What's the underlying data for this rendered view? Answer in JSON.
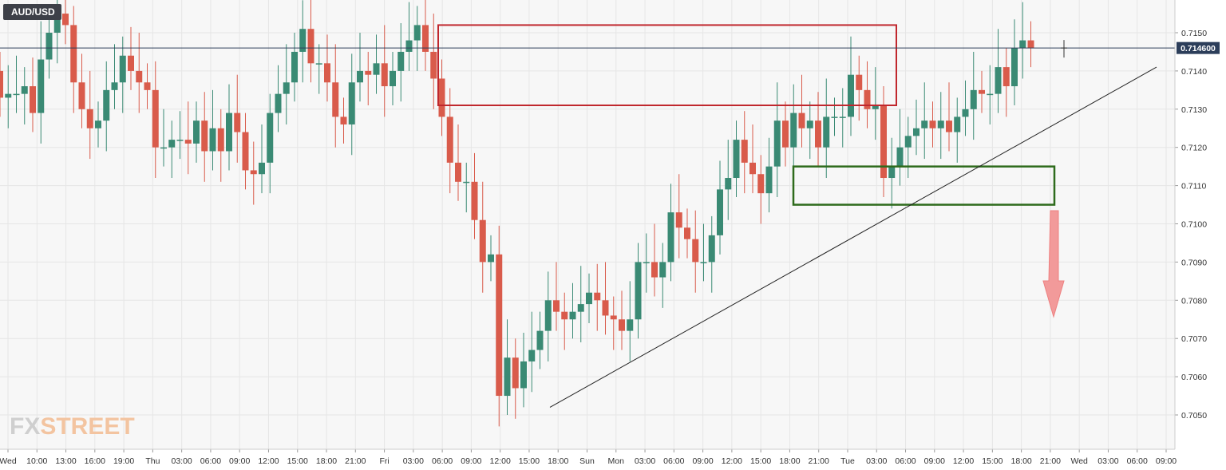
{
  "symbol": "AUD/USD",
  "watermark": {
    "part1": "FX",
    "part2": "STREET"
  },
  "current_price_label": "0.714600",
  "colors": {
    "bull": "#3a8a74",
    "bear": "#d95b4b",
    "grid": "#e6e6e6",
    "background": "#f7f7f7",
    "resistance_box": "#c0272d",
    "support_box": "#2e6b1c",
    "trendline": "#222222",
    "arrow": "#f29a9a",
    "price_line": "#2c3e5a"
  },
  "chart_data": {
    "type": "candlestick",
    "title": "",
    "symbol": "AUD/USD",
    "timeframe": "hourly",
    "xlabel": "",
    "ylabel": "",
    "ylim": [
      0.7045,
      0.7158
    ],
    "yticks": [
      "0.7050",
      "0.7060",
      "0.7070",
      "0.7080",
      "0.7090",
      "0.7100",
      "0.7110",
      "0.7120",
      "0.7130",
      "0.7140",
      "0.7150"
    ],
    "xticks": [
      "Wed",
      "10:00",
      "13:00",
      "16:00",
      "19:00",
      "Thu",
      "03:00",
      "06:00",
      "09:00",
      "12:00",
      "15:00",
      "18:00",
      "21:00",
      "Fri",
      "03:00",
      "06:00",
      "09:00",
      "12:00",
      "15:00",
      "18:00",
      "Sun",
      "Mon",
      "03:00",
      "06:00",
      "09:00",
      "12:00",
      "15:00",
      "18:00",
      "21:00",
      "Tue",
      "03:00",
      "06:00",
      "09:00",
      "12:00",
      "15:00",
      "18:00",
      "21:00",
      "Wed",
      "03:00",
      "06:00",
      "09:00"
    ],
    "current_price": 0.7146,
    "grid": true,
    "closes": [
      0.7133,
      0.7134,
      0.7134,
      0.7136,
      0.7129,
      0.7143,
      0.715,
      0.7155,
      0.7152,
      0.7137,
      0.713,
      0.7125,
      0.7127,
      0.7135,
      0.7137,
      0.7144,
      0.714,
      0.7137,
      0.7135,
      0.712,
      0.712,
      0.7122,
      0.7122,
      0.7121,
      0.7127,
      0.7119,
      0.7125,
      0.7119,
      0.7129,
      0.7124,
      0.7114,
      0.7113,
      0.7116,
      0.7129,
      0.7134,
      0.7137,
      0.7145,
      0.7151,
      0.7142,
      0.7142,
      0.7137,
      0.7128,
      0.7126,
      0.7137,
      0.714,
      0.7139,
      0.7142,
      0.7136,
      0.714,
      0.7145,
      0.7148,
      0.7152,
      0.7145,
      0.7138,
      0.7128,
      0.7116,
      0.7111,
      0.7111,
      0.7101,
      0.709,
      0.7092,
      0.7055,
      0.7065,
      0.7057,
      0.7064,
      0.7067,
      0.7072,
      0.708,
      0.7077,
      0.7075,
      0.7077,
      0.7079,
      0.7082,
      0.708,
      0.7076,
      0.7075,
      0.7072,
      0.7075,
      0.709,
      0.709,
      0.7086,
      0.709,
      0.7103,
      0.7099,
      0.7096,
      0.709,
      0.709,
      0.7097,
      0.7109,
      0.7112,
      0.7122,
      0.7116,
      0.7113,
      0.7108,
      0.7115,
      0.7127,
      0.712,
      0.7129,
      0.7125,
      0.7127,
      0.712,
      0.7128,
      0.7128,
      0.7128,
      0.7139,
      0.7135,
      0.713,
      0.7131,
      0.7112,
      0.7115,
      0.712,
      0.7123,
      0.7125,
      0.7127,
      0.7125,
      0.7127,
      0.7124,
      0.7128,
      0.713,
      0.7135,
      0.7134,
      0.7134,
      0.7141,
      0.7136,
      0.7146,
      0.7148,
      0.7146
    ],
    "series": [
      {
        "name": "",
        "opens": [
          0.714,
          0.7133,
          0.7134,
          0.7134,
          0.7136,
          0.7129,
          0.7143,
          0.715,
          0.7155,
          0.7152,
          0.7137,
          0.713,
          0.7125,
          0.7127,
          0.7135,
          0.7137,
          0.7144,
          0.714,
          0.7137,
          0.7135,
          0.712,
          0.712,
          0.7122,
          0.7122,
          0.7121,
          0.7127,
          0.7119,
          0.7125,
          0.7119,
          0.7129,
          0.7124,
          0.7114,
          0.7113,
          0.7116,
          0.7129,
          0.7134,
          0.7137,
          0.7145,
          0.7151,
          0.7142,
          0.7142,
          0.7137,
          0.7128,
          0.7126,
          0.7137,
          0.714,
          0.7139,
          0.7142,
          0.7136,
          0.714,
          0.7145,
          0.7148,
          0.7152,
          0.7145,
          0.7138,
          0.7128,
          0.7116,
          0.7111,
          0.7111,
          0.7101,
          0.709,
          0.7092,
          0.7055,
          0.7065,
          0.7057,
          0.7064,
          0.7067,
          0.7072,
          0.708,
          0.7077,
          0.7075,
          0.7077,
          0.7079,
          0.7082,
          0.708,
          0.7076,
          0.7075,
          0.7072,
          0.7075,
          0.709,
          0.709,
          0.7086,
          0.709,
          0.7103,
          0.7099,
          0.7096,
          0.709,
          0.709,
          0.7097,
          0.7109,
          0.7112,
          0.7122,
          0.7116,
          0.7113,
          0.7108,
          0.7115,
          0.7127,
          0.712,
          0.7129,
          0.7125,
          0.7127,
          0.712,
          0.7128,
          0.7128,
          0.7128,
          0.7139,
          0.7135,
          0.713,
          0.7131,
          0.7112,
          0.7115,
          0.712,
          0.7123,
          0.7125,
          0.7127,
          0.7125,
          0.7127,
          0.7124,
          0.7128,
          0.713,
          0.7135,
          0.7134,
          0.7134,
          0.7141,
          0.7136,
          0.7146,
          0.7148
        ]
      }
    ],
    "annotations": [
      {
        "type": "resistance_box",
        "price_top": 0.7152,
        "price_bottom": 0.7131
      },
      {
        "type": "support_box",
        "price_top": 0.7115,
        "price_bottom": 0.7105
      },
      {
        "type": "trendline",
        "from_price": 0.7052,
        "to_price": 0.7141
      },
      {
        "type": "down_arrow"
      }
    ]
  }
}
